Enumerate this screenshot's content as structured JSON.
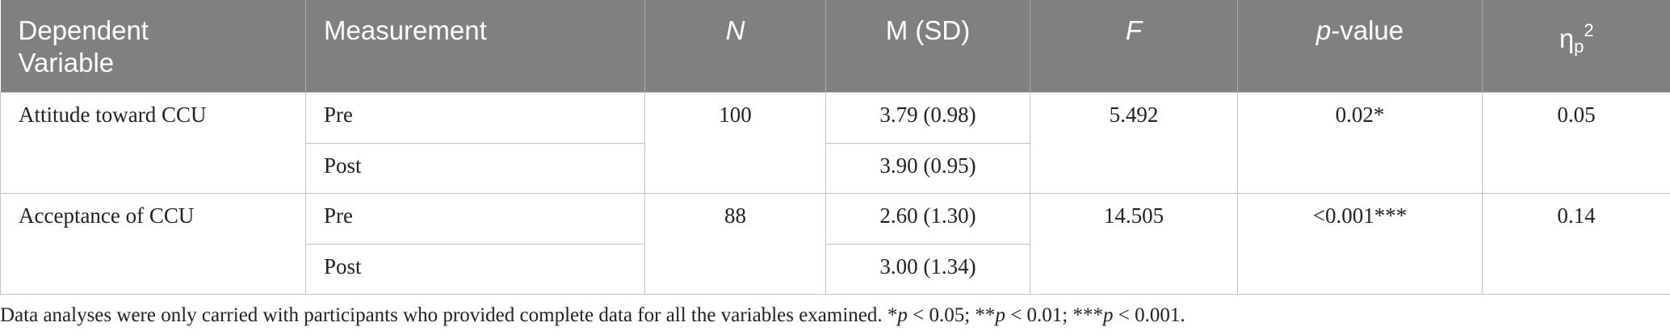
{
  "table": {
    "headers": {
      "dependent_variable_line1": "Dependent",
      "dependent_variable_line2": "Variable",
      "measurement": "Measurement",
      "n": "N",
      "m_sd": "M (SD)",
      "f": "F",
      "p_value_italic": "p",
      "p_value_rest": "-value",
      "eta_main": "η",
      "eta_sub": "p",
      "eta_sup": "2"
    },
    "rows": [
      {
        "dependent_variable": "Attitude toward CCU",
        "n": "100",
        "f": "5.492",
        "p_value": "0.02*",
        "eta": "0.05",
        "measurements": [
          {
            "label": "Pre",
            "m_sd": "3.79 (0.98)"
          },
          {
            "label": "Post",
            "m_sd": "3.90 (0.95)"
          }
        ]
      },
      {
        "dependent_variable": "Acceptance of CCU",
        "n": "88",
        "f": "14.505",
        "p_value": "<0.001***",
        "eta": "0.14",
        "measurements": [
          {
            "label": "Pre",
            "m_sd": "2.60 (1.30)"
          },
          {
            "label": "Post",
            "m_sd": "3.00 (1.34)"
          }
        ]
      }
    ]
  },
  "footnote": {
    "intro": "Data analyses were only carried with participants who provided complete data for all the variables examined. *",
    "p1": "p",
    "t1": " < 0.05; **",
    "p2": "p",
    "t2": " < 0.01; ***",
    "p3": "p",
    "t3": " < 0.001."
  }
}
